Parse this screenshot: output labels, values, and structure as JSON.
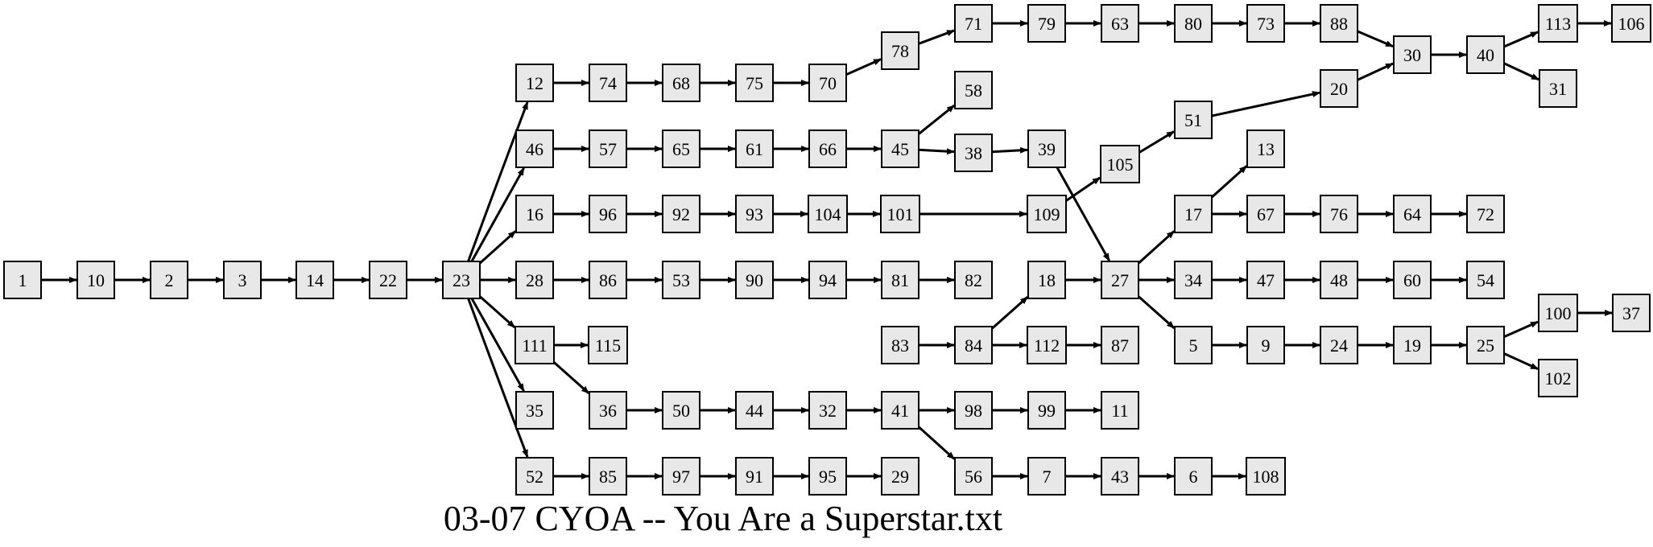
{
  "title": "03-07 CYOA -- You Are a Superstar.txt",
  "colors": {
    "node_fill": "#e8e8e8",
    "stroke": "#000000",
    "background": "#ffffff"
  },
  "nodes": [
    "1",
    "10",
    "2",
    "3",
    "14",
    "22",
    "23",
    "12",
    "74",
    "68",
    "75",
    "70",
    "78",
    "71",
    "79",
    "63",
    "80",
    "73",
    "88",
    "30",
    "40",
    "113",
    "106",
    "31",
    "58",
    "46",
    "57",
    "65",
    "61",
    "66",
    "45",
    "38",
    "39",
    "105",
    "51",
    "20",
    "13",
    "16",
    "96",
    "92",
    "93",
    "104",
    "101",
    "109",
    "17",
    "67",
    "76",
    "64",
    "72",
    "28",
    "86",
    "53",
    "90",
    "94",
    "81",
    "82",
    "18",
    "27",
    "34",
    "47",
    "48",
    "60",
    "54",
    "111",
    "115",
    "83",
    "84",
    "112",
    "87",
    "5",
    "9",
    "24",
    "19",
    "25",
    "100",
    "37",
    "102",
    "35",
    "36",
    "50",
    "44",
    "32",
    "41",
    "98",
    "99",
    "11",
    "52",
    "85",
    "97",
    "91",
    "95",
    "29",
    "56",
    "7",
    "43",
    "6",
    "108"
  ],
  "edges": [
    [
      "1",
      "10"
    ],
    [
      "10",
      "2"
    ],
    [
      "2",
      "3"
    ],
    [
      "3",
      "14"
    ],
    [
      "14",
      "22"
    ],
    [
      "22",
      "23"
    ],
    [
      "23",
      "12"
    ],
    [
      "23",
      "46"
    ],
    [
      "23",
      "16"
    ],
    [
      "23",
      "28"
    ],
    [
      "23",
      "111"
    ],
    [
      "23",
      "35"
    ],
    [
      "23",
      "52"
    ],
    [
      "12",
      "74"
    ],
    [
      "74",
      "68"
    ],
    [
      "68",
      "75"
    ],
    [
      "75",
      "70"
    ],
    [
      "70",
      "78"
    ],
    [
      "78",
      "71"
    ],
    [
      "71",
      "79"
    ],
    [
      "79",
      "63"
    ],
    [
      "63",
      "80"
    ],
    [
      "80",
      "73"
    ],
    [
      "73",
      "88"
    ],
    [
      "88",
      "30"
    ],
    [
      "30",
      "40"
    ],
    [
      "40",
      "113"
    ],
    [
      "113",
      "106"
    ],
    [
      "40",
      "31"
    ],
    [
      "46",
      "57"
    ],
    [
      "57",
      "65"
    ],
    [
      "65",
      "61"
    ],
    [
      "61",
      "66"
    ],
    [
      "66",
      "45"
    ],
    [
      "45",
      "58"
    ],
    [
      "45",
      "38"
    ],
    [
      "38",
      "39"
    ],
    [
      "39",
      "27"
    ],
    [
      "16",
      "96"
    ],
    [
      "96",
      "92"
    ],
    [
      "92",
      "93"
    ],
    [
      "93",
      "104"
    ],
    [
      "104",
      "101"
    ],
    [
      "101",
      "109"
    ],
    [
      "109",
      "105"
    ],
    [
      "105",
      "51"
    ],
    [
      "51",
      "20"
    ],
    [
      "20",
      "30"
    ],
    [
      "28",
      "86"
    ],
    [
      "86",
      "53"
    ],
    [
      "53",
      "90"
    ],
    [
      "90",
      "94"
    ],
    [
      "94",
      "81"
    ],
    [
      "81",
      "82"
    ],
    [
      "83",
      "84"
    ],
    [
      "84",
      "18"
    ],
    [
      "84",
      "112"
    ],
    [
      "112",
      "87"
    ],
    [
      "18",
      "27"
    ],
    [
      "27",
      "17"
    ],
    [
      "27",
      "34"
    ],
    [
      "27",
      "5"
    ],
    [
      "17",
      "13"
    ],
    [
      "17",
      "67"
    ],
    [
      "67",
      "76"
    ],
    [
      "76",
      "64"
    ],
    [
      "64",
      "72"
    ],
    [
      "34",
      "47"
    ],
    [
      "47",
      "48"
    ],
    [
      "48",
      "60"
    ],
    [
      "60",
      "54"
    ],
    [
      "5",
      "9"
    ],
    [
      "9",
      "24"
    ],
    [
      "24",
      "19"
    ],
    [
      "19",
      "25"
    ],
    [
      "25",
      "100"
    ],
    [
      "100",
      "37"
    ],
    [
      "25",
      "102"
    ],
    [
      "111",
      "115"
    ],
    [
      "111",
      "36"
    ],
    [
      "36",
      "50"
    ],
    [
      "50",
      "44"
    ],
    [
      "44",
      "32"
    ],
    [
      "32",
      "41"
    ],
    [
      "41",
      "98"
    ],
    [
      "98",
      "99"
    ],
    [
      "99",
      "11"
    ],
    [
      "41",
      "56"
    ],
    [
      "56",
      "7"
    ],
    [
      "7",
      "43"
    ],
    [
      "43",
      "6"
    ],
    [
      "6",
      "108"
    ],
    [
      "52",
      "85"
    ],
    [
      "85",
      "97"
    ],
    [
      "97",
      "91"
    ],
    [
      "91",
      "95"
    ],
    [
      "95",
      "29"
    ]
  ]
}
